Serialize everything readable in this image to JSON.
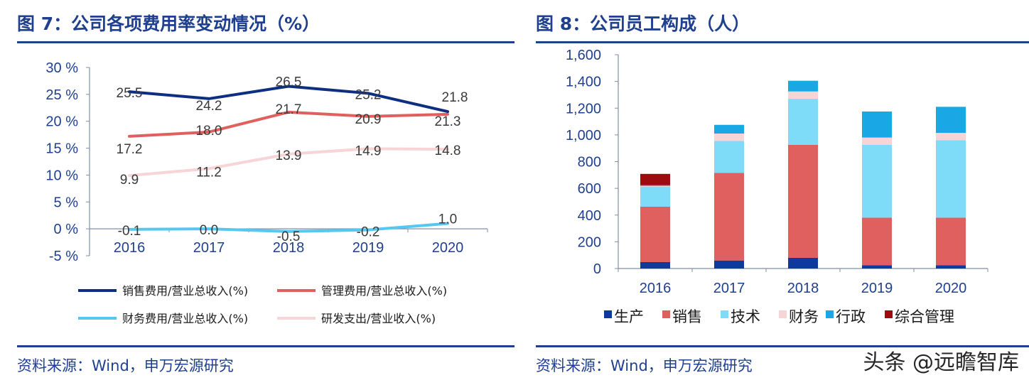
{
  "left": {
    "title": "图 7：公司各项费用率变动情况（%）",
    "source": "资料来源：Wind，申万宏源研究"
  },
  "right": {
    "title": "图 8：公司员工构成（人）",
    "source": "资料来源：Wind，申万宏源研究"
  },
  "watermark": "头条 @远瞻智库",
  "chart_data": [
    {
      "type": "line",
      "title": "图 7：公司各项费用率变动情况（%）",
      "x": [
        "2016",
        "2017",
        "2018",
        "2019",
        "2020"
      ],
      "ylim": [
        -5,
        30
      ],
      "yticks": [
        "-5 %",
        "0 %",
        "5 %",
        "10 %",
        "15 %",
        "20 %",
        "25 %",
        "30 %"
      ],
      "legend_position": "bottom",
      "series": [
        {
          "name": "销售费用/营业总收入(%)",
          "color": "#0d2f82",
          "values": [
            25.5,
            24.2,
            26.5,
            25.2,
            21.8
          ],
          "labels": [
            "25.5",
            "24.2",
            "26.5",
            "25.2",
            "21.8"
          ]
        },
        {
          "name": "管理费用/营业总收入(%)",
          "color": "#e06060",
          "values": [
            17.2,
            18.0,
            21.7,
            20.9,
            21.3
          ],
          "labels": [
            "17.2",
            "18.0",
            "21.7",
            "20.9",
            "21.3"
          ]
        },
        {
          "name": "财务费用/营业总收入(%)",
          "color": "#56c8f0",
          "values": [
            -0.1,
            0.0,
            -0.5,
            -0.2,
            1.0
          ],
          "labels": [
            "-0.1",
            "0.0",
            "-0.5",
            "-0.2",
            "1.0"
          ]
        },
        {
          "name": "研发支出/营业收入(%)",
          "color": "#f7d4d6",
          "values": [
            9.9,
            11.2,
            13.9,
            14.9,
            14.8
          ],
          "labels": [
            "9.9",
            "11.2",
            "13.9",
            "14.9",
            "14.8"
          ]
        }
      ]
    },
    {
      "type": "bar",
      "stacked": true,
      "title": "图 8：公司员工构成（人）",
      "categories": [
        "2016",
        "2017",
        "2018",
        "2019",
        "2020"
      ],
      "ylim": [
        0,
        1600
      ],
      "yticks": [
        "0",
        "200",
        "400",
        "600",
        "800",
        "1,000",
        "1,200",
        "1,400",
        "1,600"
      ],
      "legend_position": "bottom",
      "series": [
        {
          "name": "生产",
          "color": "#0d3a9c",
          "values": [
            48,
            60,
            80,
            25,
            25
          ]
        },
        {
          "name": "销售",
          "color": "#e06060",
          "values": [
            415,
            655,
            845,
            355,
            355
          ]
        },
        {
          "name": "技术",
          "color": "#7fdcf8",
          "values": [
            150,
            240,
            345,
            545,
            580
          ]
        },
        {
          "name": "财务",
          "color": "#f7d4d6",
          "values": [
            5,
            55,
            55,
            55,
            55
          ]
        },
        {
          "name": "行政",
          "color": "#1aa7e6",
          "values": [
            5,
            65,
            80,
            195,
            195
          ]
        },
        {
          "name": "综合管理",
          "color": "#9e0b0f",
          "values": [
            85,
            0,
            0,
            0,
            0
          ]
        }
      ]
    }
  ]
}
